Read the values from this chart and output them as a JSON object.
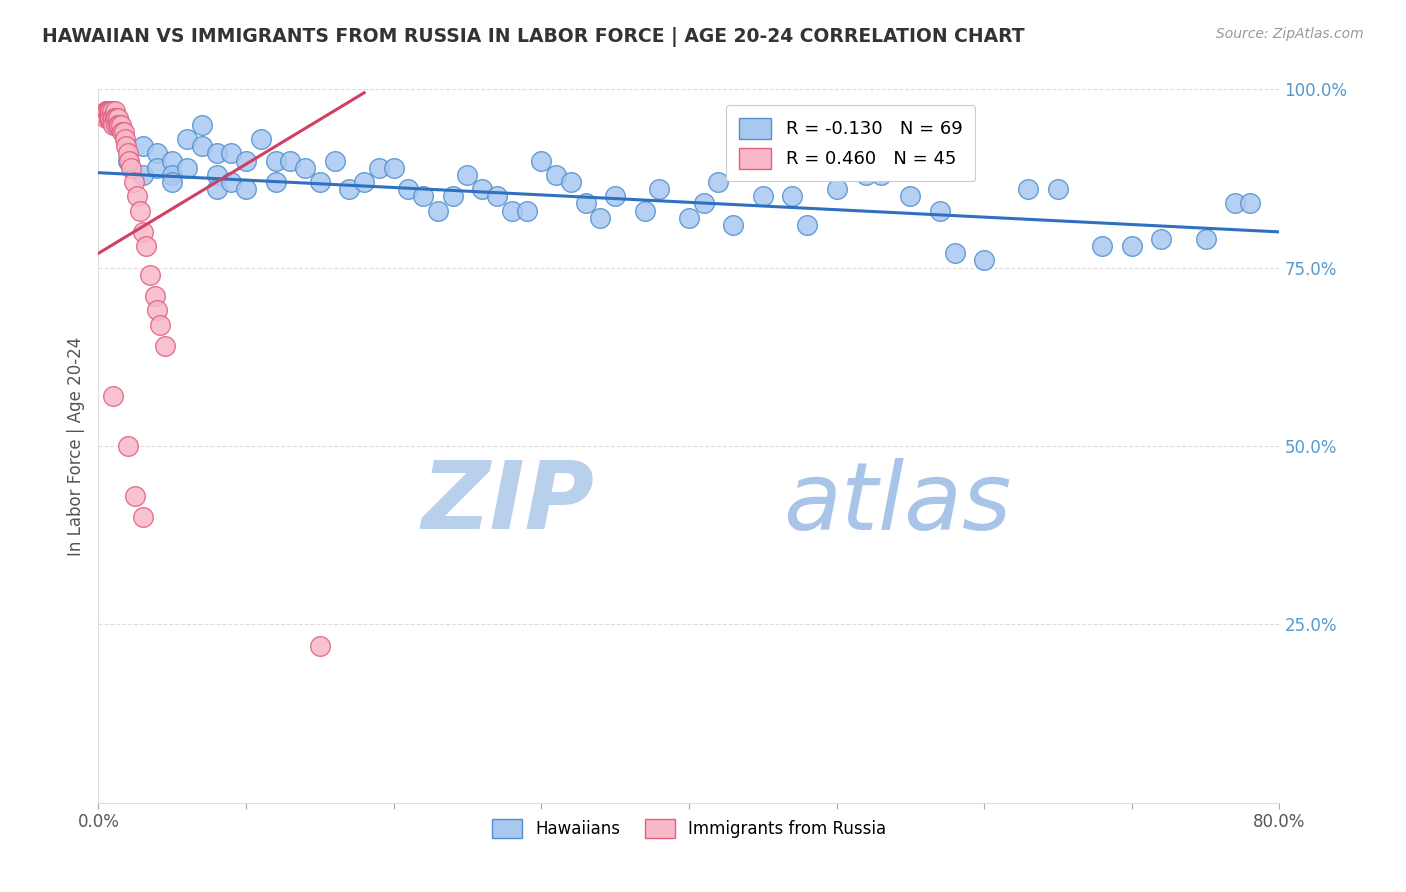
{
  "title": "HAWAIIAN VS IMMIGRANTS FROM RUSSIA IN LABOR FORCE | AGE 20-24 CORRELATION CHART",
  "source_text": "Source: ZipAtlas.com",
  "ylabel": "In Labor Force | Age 20-24",
  "xlim": [
    0.0,
    0.8
  ],
  "ylim": [
    0.0,
    1.0
  ],
  "legend_blue_r": "-0.130",
  "legend_blue_n": "69",
  "legend_pink_r": "0.460",
  "legend_pink_n": "45",
  "blue_scatter_x": [
    0.02,
    0.03,
    0.03,
    0.04,
    0.04,
    0.05,
    0.05,
    0.05,
    0.06,
    0.06,
    0.07,
    0.07,
    0.08,
    0.08,
    0.08,
    0.09,
    0.09,
    0.1,
    0.1,
    0.11,
    0.12,
    0.12,
    0.13,
    0.14,
    0.15,
    0.16,
    0.17,
    0.18,
    0.19,
    0.2,
    0.21,
    0.22,
    0.23,
    0.24,
    0.25,
    0.26,
    0.27,
    0.28,
    0.29,
    0.3,
    0.31,
    0.33,
    0.35,
    0.37,
    0.4,
    0.41,
    0.43,
    0.45,
    0.48,
    0.5,
    0.52,
    0.55,
    0.58,
    0.6,
    0.63,
    0.65,
    0.68,
    0.7,
    0.72,
    0.75,
    0.77,
    0.78,
    0.38,
    0.32,
    0.34,
    0.42,
    0.47,
    0.53,
    0.57
  ],
  "blue_scatter_y": [
    0.9,
    0.88,
    0.92,
    0.91,
    0.89,
    0.9,
    0.88,
    0.87,
    0.93,
    0.89,
    0.95,
    0.92,
    0.91,
    0.88,
    0.86,
    0.91,
    0.87,
    0.9,
    0.86,
    0.93,
    0.9,
    0.87,
    0.9,
    0.89,
    0.87,
    0.9,
    0.86,
    0.87,
    0.89,
    0.89,
    0.86,
    0.85,
    0.83,
    0.85,
    0.88,
    0.86,
    0.85,
    0.83,
    0.83,
    0.9,
    0.88,
    0.84,
    0.85,
    0.83,
    0.82,
    0.84,
    0.81,
    0.85,
    0.81,
    0.86,
    0.88,
    0.85,
    0.77,
    0.76,
    0.86,
    0.86,
    0.78,
    0.78,
    0.79,
    0.79,
    0.84,
    0.84,
    0.86,
    0.87,
    0.82,
    0.87,
    0.85,
    0.88,
    0.83
  ],
  "pink_scatter_x": [
    0.005,
    0.005,
    0.006,
    0.006,
    0.007,
    0.007,
    0.007,
    0.007,
    0.007,
    0.008,
    0.008,
    0.009,
    0.009,
    0.01,
    0.01,
    0.011,
    0.011,
    0.012,
    0.012,
    0.013,
    0.013,
    0.014,
    0.015,
    0.016,
    0.017,
    0.018,
    0.019,
    0.02,
    0.021,
    0.022,
    0.024,
    0.026,
    0.028,
    0.03,
    0.032,
    0.035,
    0.038,
    0.04,
    0.042,
    0.045,
    0.01,
    0.02,
    0.025,
    0.03,
    0.15
  ],
  "pink_scatter_y": [
    0.97,
    0.96,
    0.97,
    0.97,
    0.97,
    0.97,
    0.96,
    0.96,
    0.96,
    0.97,
    0.96,
    0.97,
    0.96,
    0.96,
    0.95,
    0.97,
    0.96,
    0.96,
    0.95,
    0.96,
    0.95,
    0.95,
    0.95,
    0.94,
    0.94,
    0.93,
    0.92,
    0.91,
    0.9,
    0.89,
    0.87,
    0.85,
    0.83,
    0.8,
    0.78,
    0.74,
    0.71,
    0.69,
    0.67,
    0.64,
    0.57,
    0.5,
    0.43,
    0.4,
    0.22
  ],
  "blue_line_x0": 0.0,
  "blue_line_x1": 0.8,
  "blue_line_y0": 0.883,
  "blue_line_y1": 0.8,
  "pink_line_x0": 0.0,
  "pink_line_x1": 0.18,
  "pink_line_y0": 0.77,
  "pink_line_y1": 0.995,
  "watermark_zip": "ZIP",
  "watermark_atlas": "atlas",
  "blue_color": "#A8C8F0",
  "pink_color": "#F8B8C8",
  "blue_edge_color": "#5090D0",
  "pink_edge_color": "#E06080",
  "blue_line_color": "#3070C0",
  "pink_line_color": "#D04060",
  "grid_color": "#DDDDDD",
  "right_axis_color": "#5599CC",
  "title_color": "#333333",
  "watermark_zip_color": "#B8D0EC",
  "watermark_atlas_color": "#A8C4E8"
}
